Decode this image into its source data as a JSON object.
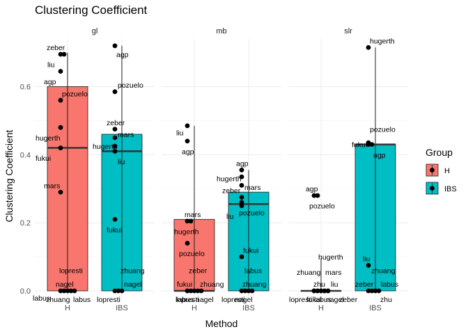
{
  "chart_data": {
    "type": "bar",
    "title": "Clustering Coefficient",
    "xlabel": "Method",
    "ylabel": "Clustering Coefficient",
    "ylim": [
      0,
      0.74
    ],
    "y_ticks": [
      0.0,
      0.2,
      0.4,
      0.6
    ],
    "y_tick_labels": [
      "0.0",
      "0.2",
      "0.4",
      "0.6"
    ],
    "categories": [
      "H",
      "IBS"
    ],
    "legend": {
      "title": "Group",
      "placement": "right",
      "entries": [
        {
          "label": "H",
          "color": "#F8766D"
        },
        {
          "label": "IBS",
          "color": "#00BFC4"
        }
      ]
    },
    "grid": true,
    "facets": [
      {
        "name": "gl",
        "bars": [
          {
            "group": "H",
            "value": 0.6,
            "median": 0.42,
            "whisker": [
              0.0,
              0.7
            ]
          },
          {
            "group": "IBS",
            "value": 0.46,
            "median": 0.41,
            "whisker": [
              0.0,
              0.72
            ]
          }
        ],
        "points": [
          {
            "group": "H",
            "value": 0.695,
            "label": "zeber",
            "lx": -0.5,
            "ly": 0.02
          },
          {
            "group": "H",
            "value": 0.695,
            "label": "liu",
            "lx": -0.6,
            "ly": -0.03
          },
          {
            "group": "H",
            "value": 0.645,
            "label": "agp",
            "lx": -0.6,
            "ly": -0.03
          },
          {
            "group": "H",
            "value": 0.56,
            "label": "pozuelo",
            "lx": 0.05,
            "ly": 0.02
          },
          {
            "group": "H",
            "value": 0.48,
            "label": "hugerth",
            "lx": -0.9,
            "ly": -0.03
          },
          {
            "group": "H",
            "value": 0.42,
            "label": "fukui",
            "lx": -0.9,
            "ly": -0.03
          },
          {
            "group": "H",
            "value": 0.29,
            "label": "mars",
            "lx": -0.6,
            "ly": 0.02
          },
          {
            "group": "H",
            "value": 0.0,
            "label": "lopresti",
            "lx": -0.05,
            "ly": 0.06
          },
          {
            "group": "H",
            "value": 0.0,
            "label": "nagel",
            "lx": -0.3,
            "ly": 0.02
          },
          {
            "group": "H",
            "value": 0.0,
            "label": "labus",
            "lx": -1.25,
            "ly": -0.02
          },
          {
            "group": "H",
            "value": 0.0,
            "label": "zhuang",
            "lx": -0.9,
            "ly": -0.025
          },
          {
            "group": "H",
            "value": 0.0,
            "label": "labus",
            "lx": -0.05,
            "ly": -0.025
          },
          {
            "group": "IBS",
            "value": 0.72,
            "label": "agp",
            "lx": 0.05,
            "ly": -0.025
          },
          {
            "group": "IBS",
            "value": 0.585,
            "label": "pozuelo",
            "lx": 0.1,
            "ly": 0.02
          },
          {
            "group": "IBS",
            "value": 0.475,
            "label": "zeber",
            "lx": -0.3,
            "ly": 0.02
          },
          {
            "group": "IBS",
            "value": 0.45,
            "label": "mars",
            "lx": 0.1,
            "ly": 0.01
          },
          {
            "group": "IBS",
            "value": 0.425,
            "label": "hugerth",
            "lx": -0.8,
            "ly": 0.0
          },
          {
            "group": "IBS",
            "value": 0.41,
            "label": "liu",
            "lx": 0.1,
            "ly": -0.03
          },
          {
            "group": "IBS",
            "value": 0.21,
            "label": "fukui",
            "lx": -0.3,
            "ly": -0.03
          },
          {
            "group": "IBS",
            "value": 0.0,
            "label": "zhuang",
            "lx": 0.2,
            "ly": 0.06
          },
          {
            "group": "IBS",
            "value": 0.0,
            "label": "nagel",
            "lx": 0.2,
            "ly": 0.02
          },
          {
            "group": "IBS",
            "value": 0.0,
            "label": "lopresti",
            "lx": -0.9,
            "ly": -0.025
          }
        ]
      },
      {
        "name": "mb",
        "bars": [
          {
            "group": "H",
            "value": 0.21,
            "median": 0.0,
            "whisker": [
              0.0,
              0.485
            ]
          },
          {
            "group": "IBS",
            "value": 0.29,
            "median": 0.255,
            "whisker": [
              0.0,
              0.355
            ]
          }
        ],
        "points": [
          {
            "group": "H",
            "value": 0.485,
            "label": "liu",
            "lx": -0.4,
            "ly": -0.02
          },
          {
            "group": "H",
            "value": 0.44,
            "label": "agp",
            "lx": -0.2,
            "ly": -0.03
          },
          {
            "group": "H",
            "value": 0.205,
            "label": "mars",
            "lx": -0.1,
            "ly": 0.02
          },
          {
            "group": "H",
            "value": 0.205,
            "label": "hugerth",
            "lx": -0.6,
            "ly": -0.03
          },
          {
            "group": "H",
            "value": 0.14,
            "label": "pozuelo",
            "lx": -0.3,
            "ly": -0.03
          },
          {
            "group": "H",
            "value": 0.0,
            "label": "zeber",
            "lx": 0.05,
            "ly": 0.06
          },
          {
            "group": "H",
            "value": 0.0,
            "label": "fukui",
            "lx": -0.5,
            "ly": 0.02
          },
          {
            "group": "H",
            "value": 0.0,
            "label": "zhuang",
            "lx": 0.2,
            "ly": 0.02
          },
          {
            "group": "H",
            "value": 0.0,
            "label": "lopresti",
            "lx": -0.8,
            "ly": -0.025
          },
          {
            "group": "H",
            "value": 0.0,
            "label": "nagel",
            "lx": -0.2,
            "ly": -0.025
          },
          {
            "group": "H",
            "value": 0.0,
            "label": "labus",
            "lx": -0.4,
            "ly": -0.025
          },
          {
            "group": "IBS",
            "value": 0.355,
            "label": "agp",
            "lx": -0.2,
            "ly": 0.02
          },
          {
            "group": "IBS",
            "value": 0.335,
            "label": "mars",
            "lx": 0.1,
            "ly": -0.03
          },
          {
            "group": "IBS",
            "value": 0.31,
            "label": "hugerth",
            "lx": -0.9,
            "ly": 0.02
          },
          {
            "group": "IBS",
            "value": 0.275,
            "label": "zeber",
            "lx": -0.7,
            "ly": 0.02
          },
          {
            "group": "IBS",
            "value": 0.26,
            "label": "pozuelo",
            "lx": -0.1,
            "ly": -0.03
          },
          {
            "group": "IBS",
            "value": 0.25,
            "label": "liu",
            "lx": -0.55,
            "ly": -0.03
          },
          {
            "group": "IBS",
            "value": 0.1,
            "label": "fukui",
            "lx": 0.05,
            "ly": 0.02
          },
          {
            "group": "IBS",
            "value": 0.0,
            "label": "labus",
            "lx": 0.1,
            "ly": 0.06
          },
          {
            "group": "IBS",
            "value": 0.0,
            "label": "zhuang",
            "lx": -0.1,
            "ly": 0.02
          },
          {
            "group": "IBS",
            "value": 0.0,
            "label": "nagel",
            "lx": -0.5,
            "ly": -0.025
          },
          {
            "group": "IBS",
            "value": 0.0,
            "label": "lopresti",
            "lx": -1.1,
            "ly": -0.025
          }
        ]
      },
      {
        "name": "slr",
        "bars": [
          {
            "group": "H",
            "value": 0.0,
            "median": 0.0,
            "whisker": [
              0.0,
              0.095
            ]
          },
          {
            "group": "IBS",
            "value": 0.43,
            "median": 0.43,
            "whisker": [
              0.0,
              0.715
            ]
          }
        ],
        "points": [
          {
            "group": "H",
            "value": 0.28,
            "label": "agp",
            "lx": -0.3,
            "ly": 0.02
          },
          {
            "group": "H",
            "value": 0.28,
            "label": "pozuelo",
            "lx": -0.3,
            "ly": -0.03
          },
          {
            "group": "H",
            "value": 0.0,
            "label": "hugerth",
            "lx": 0.15,
            "ly": 0.1
          },
          {
            "group": "H",
            "value": 0.0,
            "label": "zhuang",
            "lx": -0.75,
            "ly": 0.055
          },
          {
            "group": "H",
            "value": 0.0,
            "label": "mars",
            "lx": 0.15,
            "ly": 0.055
          },
          {
            "group": "H",
            "value": 0.0,
            "label": "zhu",
            "lx": -0.4,
            "ly": 0.02
          },
          {
            "group": "H",
            "value": 0.0,
            "label": "liu",
            "lx": 0.1,
            "ly": 0.02
          },
          {
            "group": "H",
            "value": 0.0,
            "label": "lopresti",
            "lx": -0.9,
            "ly": -0.025
          },
          {
            "group": "H",
            "value": 0.0,
            "label": "fukui",
            "lx": -0.4,
            "ly": -0.025
          },
          {
            "group": "H",
            "value": 0.0,
            "label": "labus",
            "lx": -0.25,
            "ly": -0.025
          },
          {
            "group": "H",
            "value": 0.0,
            "label": "nagel",
            "lx": 0.05,
            "ly": -0.025
          },
          {
            "group": "H",
            "value": 0.0,
            "label": "zeber",
            "lx": 0.4,
            "ly": -0.025
          },
          {
            "group": "IBS",
            "value": 0.715,
            "label": "hugerth",
            "lx": 0.05,
            "ly": 0.02
          },
          {
            "group": "IBS",
            "value": 0.435,
            "label": "pozuelo",
            "lx": 0.05,
            "ly": 0.04
          },
          {
            "group": "IBS",
            "value": 0.43,
            "label": "fukui",
            "lx": -0.6,
            "ly": 0.0
          },
          {
            "group": "IBS",
            "value": 0.43,
            "label": "agp",
            "lx": 0.05,
            "ly": -0.03
          },
          {
            "group": "IBS",
            "value": 0.075,
            "label": "liu",
            "lx": -0.2,
            "ly": 0.02
          },
          {
            "group": "IBS",
            "value": 0.0,
            "label": "zhuang",
            "lx": 0.1,
            "ly": 0.06
          },
          {
            "group": "IBS",
            "value": 0.0,
            "label": "zeber",
            "lx": -0.6,
            "ly": 0.02
          },
          {
            "group": "IBS",
            "value": 0.0,
            "label": "labus",
            "lx": 0.2,
            "ly": 0.02
          },
          {
            "group": "IBS",
            "value": 0.0,
            "label": "zhu",
            "lx": 0.05,
            "ly": -0.025
          }
        ]
      }
    ]
  }
}
